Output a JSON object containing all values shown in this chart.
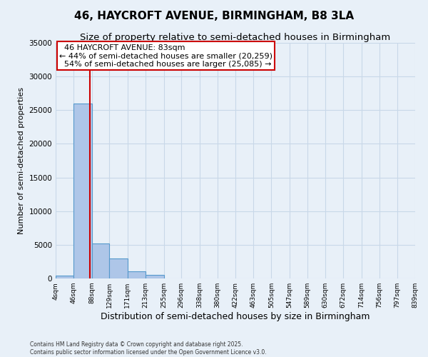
{
  "title": "46, HAYCROFT AVENUE, BIRMINGHAM, B8 3LA",
  "subtitle": "Size of property relative to semi-detached houses in Birmingham",
  "xlabel": "Distribution of semi-detached houses by size in Birmingham",
  "ylabel": "Number of semi-detached properties",
  "property_label": "46 HAYCROFT AVENUE: 83sqm",
  "pct_smaller": 44,
  "pct_larger": 54,
  "count_smaller": 20259,
  "count_larger": 25085,
  "bin_edges": [
    4,
    46,
    88,
    129,
    171,
    213,
    255,
    296,
    338,
    380,
    422,
    463,
    505,
    547,
    589,
    630,
    672,
    714,
    756,
    797,
    839
  ],
  "bin_labels": [
    "4sqm",
    "46sqm",
    "88sqm",
    "129sqm",
    "171sqm",
    "213sqm",
    "255sqm",
    "296sqm",
    "338sqm",
    "380sqm",
    "422sqm",
    "463sqm",
    "505sqm",
    "547sqm",
    "589sqm",
    "630sqm",
    "672sqm",
    "714sqm",
    "756sqm",
    "797sqm",
    "839sqm"
  ],
  "bar_heights": [
    400,
    26000,
    5200,
    3000,
    1100,
    500,
    0,
    0,
    0,
    0,
    0,
    0,
    0,
    0,
    0,
    0,
    0,
    0,
    0,
    0
  ],
  "bar_color": "#aec6e8",
  "bar_edge_color": "#5599cc",
  "vline_color": "#cc0000",
  "vline_x": 83,
  "ylim": [
    0,
    35000
  ],
  "yticks": [
    0,
    5000,
    10000,
    15000,
    20000,
    25000,
    30000,
    35000
  ],
  "grid_color": "#c8d8e8",
  "bg_color": "#e8f0f8",
  "annotation_box_color": "#cc0000",
  "footer": "Contains HM Land Registry data © Crown copyright and database right 2025.\nContains public sector information licensed under the Open Government Licence v3.0.",
  "title_fontsize": 11,
  "subtitle_fontsize": 9.5,
  "ylabel_fontsize": 8,
  "xlabel_fontsize": 9
}
